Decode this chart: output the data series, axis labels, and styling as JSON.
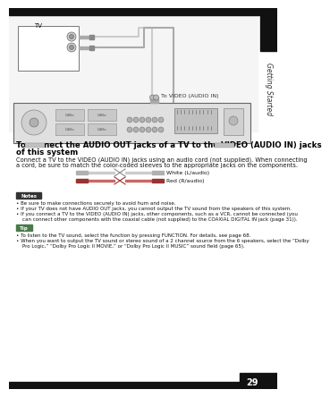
{
  "bg_color": "#ffffff",
  "title_line1": "To connect the AUDIO OUT jacks of a TV to the VIDEO (AUDIO IN) jacks",
  "title_line2": "of this system",
  "body_line1": "Connect a TV to the VIDEO (AUDIO IN) jacks using an audio cord (not supplied). When connecting",
  "body_line2": "a cord, be sure to match the color-coded sleeves to the appropriate jacks on the components.",
  "note_label": "Notes",
  "note_b1": "Be sure to make connections securely to avoid hum and noise.",
  "note_b2": "If your TV does not have AUDIO OUT jacks, you cannot output the TV sound from the speakers of this system.",
  "note_b3a": "If you connect a TV to the VIDEO (AUDIO IN) jacks, other components, such as a VCR, cannot be connected (you",
  "note_b3b": "  can connect other components with the coaxial cable (not supplied) to the COAXIAL DIGITAL IN jack (page 31)).",
  "tip_label": "Tip",
  "tip_b1": "To listen to the TV sound, select the function by pressing FUNCTION. For details, see page 68.",
  "tip_b2a": "When you want to output the TV sound or stereo sound of a 2 channel source from the 6 speakers, select the “Dolby",
  "tip_b2b": "  Pro Logic,” “Dolby Pro Logic II MOVIE,” or “Dolby Pro Logic II MUSIC” sound field (page 65).",
  "sidebar_text": "Getting Started",
  "page_num": "29",
  "tv_label": "TV",
  "audio_in_label": "To VIDEO (AUDIO IN)",
  "white_label": "White (L/audio)",
  "red_label": "Red (R/audio)",
  "top_bar_color": "#111111",
  "sidebar_block_color": "#111111",
  "note_bg_color": "#333333",
  "tip_bg_color": "#4a7a4a",
  "bottom_bar_color": "#111111",
  "page_box_color": "#111111",
  "diagram_bg": "#f5f5f5",
  "receiver_color": "#e0e0e0",
  "cable_gray": "#aaaaaa",
  "cable_red": "#bb4444",
  "connector_color": "#999999",
  "text_dark": "#111111",
  "text_mid": "#333333",
  "line_color": "#666666"
}
